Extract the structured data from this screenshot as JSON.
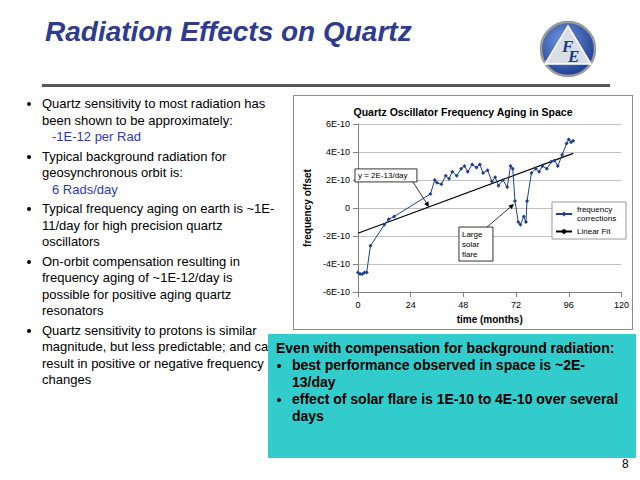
{
  "slide": {
    "title": "Radiation Effects on Quartz",
    "logo": [
      "F",
      "E"
    ],
    "bullets": [
      {
        "text": "Quartz sensitivity to most radiation has been shown to be approximately:",
        "sub": "-1E-12 per Rad"
      },
      {
        "text": "Typical background radiation for geosynchronous orbit is:",
        "sub": "6 Rads/day"
      },
      {
        "text": "Typical frequency aging on earth is ~1E-11/day for high precision quartz oscillators"
      },
      {
        "text": "On-orbit compensation resulting in frequency aging of ~1E-12/day is possible for positive aging quartz resonators"
      },
      {
        "text": "Quartz sensitivity to protons is similar magnitude, but less predictable; and can result in positive or negative frequency changes"
      }
    ],
    "callout": {
      "heading": "Even with compensation for background radiation:",
      "items": [
        "best performance observed in space is ~2E-13/day",
        "effect of solar flare is 1E-10 to 4E-10 over several days"
      ]
    },
    "page": "8"
  },
  "chart_data": {
    "type": "line",
    "title": "Quartz Oscillator Frequency Aging in Space",
    "x_label": "time (months)",
    "y_label": "frequency offset",
    "xlim": [
      0,
      120
    ],
    "xticks": [
      0,
      24,
      48,
      72,
      96,
      120
    ],
    "ylim": [
      -6e-10,
      6e-10
    ],
    "yticks": [
      {
        "value": -6e-10,
        "label": "-6E-10"
      },
      {
        "value": -4e-10,
        "label": "-4E-10"
      },
      {
        "value": -2e-10,
        "label": "-2E-10"
      },
      0,
      {
        "value": 2e-10,
        "label": "2E-10"
      },
      {
        "value": 4e-10,
        "label": "4E-10"
      },
      {
        "value": 6e-10,
        "label": "6E-10"
      }
    ],
    "grid": true,
    "legend": "right",
    "series": [
      {
        "name": "frequency corrections",
        "color": "#1f3f8f",
        "marker": "diamond",
        "x": [
          0,
          1,
          2,
          3,
          4,
          5.7,
          12,
          14,
          16.5,
          33,
          35,
          36,
          38,
          40,
          41.5,
          43,
          45,
          47,
          48.5,
          50,
          52,
          54,
          55.5,
          57,
          59,
          61,
          62.5,
          64,
          66,
          68,
          69.5,
          70.5,
          71.5,
          73,
          74,
          75.5,
          76.5,
          77,
          79,
          81,
          82.5,
          84,
          86,
          88,
          89.5,
          91,
          93,
          95,
          96,
          97,
          98
        ],
        "values": [
          -4.6e-10,
          -4.7e-10,
          -4.7e-10,
          -4.6e-10,
          -4.6e-10,
          -2.7e-10,
          -1.2e-10,
          -8e-11,
          -6e-11,
          1e-10,
          2e-10,
          1.8e-10,
          1.7e-10,
          2.3e-10,
          2.1e-10,
          2.6e-10,
          2.3e-10,
          2.8e-10,
          3e-10,
          2.6e-10,
          3.1e-10,
          2.9e-10,
          3.1e-10,
          2.5e-10,
          2.7e-10,
          1.9e-10,
          2.2e-10,
          1.6e-10,
          2e-10,
          1.5e-10,
          3e-10,
          2.8e-10,
          5e-11,
          -1e-10,
          -1.2e-10,
          -6e-11,
          -1e-10,
          5e-11,
          2.5e-10,
          2.8e-10,
          2.6e-10,
          3e-10,
          2.8e-10,
          3.3e-10,
          3.4e-10,
          3e-10,
          3.8e-10,
          4.6e-10,
          4.9e-10,
          4.7e-10,
          4.8e-10
        ]
      },
      {
        "name": "Linear Fit",
        "color": "#000000",
        "marker": "none",
        "x": [
          0,
          98
        ],
        "values": [
          -1.8e-10,
          3.9e-10
        ]
      }
    ],
    "annotations": [
      {
        "text": "y = 2E-13/day"
      },
      {
        "text": "Large solar flare"
      }
    ]
  }
}
